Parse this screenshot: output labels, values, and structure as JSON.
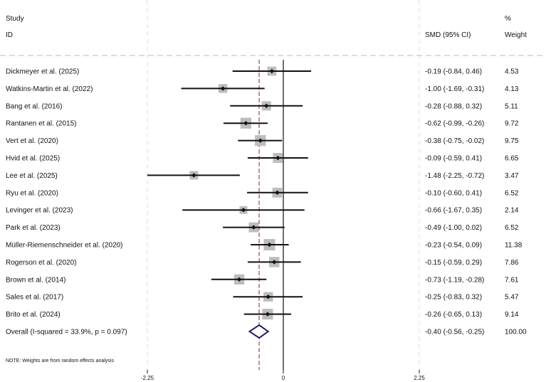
{
  "header": {
    "study_line1": "Study",
    "study_line2": "ID",
    "smd_label": "SMD (95% CI)",
    "weight_line1": "%",
    "weight_line2": "Weight"
  },
  "note": "NOTE: Weights are from random effects analysis",
  "chart_data": {
    "type": "forest",
    "title": "",
    "xlabel": "",
    "ylabel": "",
    "x_ticks": [
      {
        "value": -2.25,
        "label": "-2.25"
      },
      {
        "value": 0,
        "label": "0"
      },
      {
        "value": 2.25,
        "label": "2.25"
      }
    ],
    "xlim": [
      -2.25,
      2.25
    ],
    "null_line": 0,
    "overall_line": -0.4,
    "studies": [
      {
        "label": "Dickmeyer et al. (2025)",
        "smd": -0.19,
        "lower": -0.84,
        "upper": 0.46,
        "ci_text": "-0.19 (-0.84, 0.46)",
        "weight": 4.53,
        "weight_text": "4.53"
      },
      {
        "label": "Watkins-Martin et al. (2022)",
        "smd": -1.0,
        "lower": -1.69,
        "upper": -0.31,
        "ci_text": "-1.00 (-1.69, -0.31)",
        "weight": 4.13,
        "weight_text": "4.13"
      },
      {
        "label": "Bang et al. (2016)",
        "smd": -0.28,
        "lower": -0.88,
        "upper": 0.32,
        "ci_text": "-0.28 (-0.88, 0.32)",
        "weight": 5.11,
        "weight_text": "5.11"
      },
      {
        "label": "Rantanen et al. (2015)",
        "smd": -0.62,
        "lower": -0.99,
        "upper": -0.26,
        "ci_text": "-0.62 (-0.99, -0.26)",
        "weight": 9.72,
        "weight_text": "9.72"
      },
      {
        "label": "Vert et al. (2020)",
        "smd": -0.38,
        "lower": -0.75,
        "upper": -0.02,
        "ci_text": "-0.38 (-0.75, -0.02)",
        "weight": 9.75,
        "weight_text": "9.75"
      },
      {
        "label": "Hvid et al. (2025)",
        "smd": -0.09,
        "lower": -0.59,
        "upper": 0.41,
        "ci_text": "-0.09 (-0.59, 0.41)",
        "weight": 6.65,
        "weight_text": "6.65"
      },
      {
        "label": "Lee et al. (2025)",
        "smd": -1.48,
        "lower": -2.25,
        "upper": -0.72,
        "ci_text": "-1.48 (-2.25, -0.72)",
        "weight": 3.47,
        "weight_text": "3.47"
      },
      {
        "label": "Ryu et al. (2020)",
        "smd": -0.1,
        "lower": -0.6,
        "upper": 0.41,
        "ci_text": "-0.10 (-0.60, 0.41)",
        "weight": 6.52,
        "weight_text": "6.52"
      },
      {
        "label": "Levinger et al. (2023)",
        "smd": -0.66,
        "lower": -1.67,
        "upper": 0.35,
        "ci_text": "-0.66 (-1.67, 0.35)",
        "weight": 2.14,
        "weight_text": "2.14"
      },
      {
        "label": "Park et al. (2023)",
        "smd": -0.49,
        "lower": -1.0,
        "upper": 0.02,
        "ci_text": "-0.49 (-1.00, 0.02)",
        "weight": 6.52,
        "weight_text": "6.52"
      },
      {
        "label": "Müller-Riemenschneider et al. (2020)",
        "smd": -0.23,
        "lower": -0.54,
        "upper": 0.09,
        "ci_text": "-0.23 (-0.54, 0.09)",
        "weight": 11.38,
        "weight_text": "11.38"
      },
      {
        "label": "Rogerson et al. (2020)",
        "smd": -0.15,
        "lower": -0.59,
        "upper": 0.29,
        "ci_text": "-0.15 (-0.59, 0.29)",
        "weight": 7.86,
        "weight_text": "7.86"
      },
      {
        "label": "Brown et al. (2014)",
        "smd": -0.73,
        "lower": -1.19,
        "upper": -0.28,
        "ci_text": "-0.73 (-1.19, -0.28)",
        "weight": 7.61,
        "weight_text": "7.61"
      },
      {
        "label": "Sales et al. (2017)",
        "smd": -0.25,
        "lower": -0.83,
        "upper": 0.32,
        "ci_text": "-0.25 (-0.83, 0.32)",
        "weight": 5.47,
        "weight_text": "5.47"
      },
      {
        "label": "Brito et al. (2024)",
        "smd": -0.26,
        "lower": -0.65,
        "upper": 0.13,
        "ci_text": "-0.26 (-0.65, 0.13)",
        "weight": 9.14,
        "weight_text": "9.14"
      }
    ],
    "overall": {
      "label": "Overall  (I-squared = 33.9%, p = 0.097)",
      "smd": -0.4,
      "lower": -0.56,
      "upper": -0.25,
      "ci_text": "-0.40 (-0.56, -0.25)",
      "weight": 100.0,
      "weight_text": "100.00"
    },
    "colors": {
      "line": "#111111",
      "box": "#bdbdbd",
      "diamond": "#2d1e6b",
      "overall_line": "#a0526e",
      "grid": "#dddddd"
    }
  }
}
